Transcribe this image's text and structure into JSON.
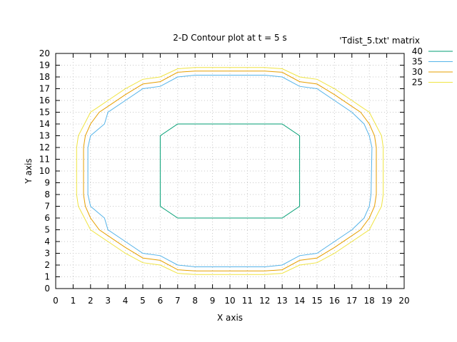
{
  "chart_data": {
    "type": "line",
    "title": "2-D Contour plot at t = 5 s",
    "xlabel": "X axis",
    "ylabel": "Y axis",
    "xlim": [
      0,
      20
    ],
    "ylim": [
      0,
      20
    ],
    "xticks": [
      0,
      1,
      2,
      3,
      4,
      5,
      6,
      7,
      8,
      9,
      10,
      11,
      12,
      13,
      14,
      15,
      16,
      17,
      18,
      19,
      20
    ],
    "yticks": [
      0,
      1,
      2,
      3,
      4,
      5,
      6,
      7,
      8,
      9,
      10,
      11,
      12,
      13,
      14,
      15,
      16,
      17,
      18,
      19,
      20
    ],
    "grid": true,
    "legend_title": "'Tdist_5.txt' matrix",
    "legend_position": "right",
    "series": [
      {
        "name": "40",
        "color": "#009e73",
        "points": [
          [
            7,
            6
          ],
          [
            13,
            6
          ],
          [
            14,
            7
          ],
          [
            14,
            13
          ],
          [
            13,
            14
          ],
          [
            7,
            14
          ],
          [
            6,
            13
          ],
          [
            6,
            7
          ],
          [
            7,
            6
          ]
        ]
      },
      {
        "name": "35",
        "color": "#56b4e9",
        "points": [
          [
            7,
            2
          ],
          [
            8,
            1.85
          ],
          [
            12,
            1.85
          ],
          [
            13,
            2
          ],
          [
            14,
            2.8
          ],
          [
            15,
            3
          ],
          [
            16,
            4
          ],
          [
            17,
            5
          ],
          [
            17.7,
            6
          ],
          [
            18,
            7
          ],
          [
            18.1,
            8
          ],
          [
            18.15,
            12
          ],
          [
            18,
            13
          ],
          [
            17.7,
            14
          ],
          [
            17,
            15
          ],
          [
            16,
            16
          ],
          [
            15,
            17
          ],
          [
            14,
            17.2
          ],
          [
            13,
            18
          ],
          [
            12,
            18.15
          ],
          [
            8,
            18.15
          ],
          [
            7,
            18
          ],
          [
            6,
            17.2
          ],
          [
            5,
            17
          ],
          [
            4,
            16
          ],
          [
            3,
            15
          ],
          [
            2.8,
            14
          ],
          [
            2,
            13
          ],
          [
            1.85,
            12
          ],
          [
            1.85,
            8
          ],
          [
            2,
            7
          ],
          [
            2.8,
            6
          ],
          [
            3,
            5
          ],
          [
            4,
            4
          ],
          [
            5,
            3
          ],
          [
            6,
            2.8
          ],
          [
            7,
            2
          ]
        ]
      },
      {
        "name": "30",
        "color": "#e69f00",
        "points": [
          [
            7,
            1.6
          ],
          [
            8,
            1.5
          ],
          [
            12,
            1.5
          ],
          [
            13,
            1.6
          ],
          [
            14,
            2.4
          ],
          [
            15,
            2.6
          ],
          [
            16,
            3.5
          ],
          [
            17,
            4.5
          ],
          [
            17.5,
            5
          ],
          [
            18,
            6
          ],
          [
            18.3,
            7
          ],
          [
            18.4,
            8
          ],
          [
            18.4,
            12
          ],
          [
            18.3,
            13
          ],
          [
            18,
            14
          ],
          [
            17.5,
            15
          ],
          [
            17,
            15.5
          ],
          [
            16,
            16.5
          ],
          [
            15,
            17.4
          ],
          [
            14,
            17.6
          ],
          [
            13,
            18.4
          ],
          [
            12,
            18.5
          ],
          [
            8,
            18.5
          ],
          [
            7,
            18.4
          ],
          [
            6,
            17.6
          ],
          [
            5,
            17.4
          ],
          [
            4,
            16.5
          ],
          [
            3,
            15.5
          ],
          [
            2.5,
            15
          ],
          [
            2,
            14
          ],
          [
            1.7,
            13
          ],
          [
            1.6,
            12
          ],
          [
            1.6,
            8
          ],
          [
            1.7,
            7
          ],
          [
            2,
            6
          ],
          [
            2.5,
            5
          ],
          [
            3,
            4.5
          ],
          [
            4,
            3.5
          ],
          [
            5,
            2.6
          ],
          [
            6,
            2.4
          ],
          [
            7,
            1.6
          ]
        ]
      },
      {
        "name": "25",
        "color": "#f0e442",
        "points": [
          [
            7,
            1.3
          ],
          [
            8,
            1.2
          ],
          [
            12,
            1.2
          ],
          [
            13,
            1.3
          ],
          [
            14,
            2
          ],
          [
            15,
            2.2
          ],
          [
            16,
            3
          ],
          [
            17,
            4
          ],
          [
            17.5,
            4.5
          ],
          [
            18,
            5
          ],
          [
            18.7,
            7
          ],
          [
            18.8,
            8
          ],
          [
            18.8,
            12
          ],
          [
            18.7,
            13
          ],
          [
            18,
            15
          ],
          [
            17.5,
            15.5
          ],
          [
            17,
            16
          ],
          [
            16,
            17
          ],
          [
            15,
            17.8
          ],
          [
            14,
            18
          ],
          [
            13,
            18.7
          ],
          [
            12,
            18.8
          ],
          [
            8,
            18.8
          ],
          [
            7,
            18.7
          ],
          [
            6,
            18
          ],
          [
            5,
            17.8
          ],
          [
            4,
            17
          ],
          [
            3,
            16
          ],
          [
            2.5,
            15.5
          ],
          [
            2,
            15
          ],
          [
            1.3,
            13
          ],
          [
            1.2,
            12
          ],
          [
            1.2,
            8
          ],
          [
            1.3,
            7
          ],
          [
            2,
            5
          ],
          [
            2.5,
            4.5
          ],
          [
            3,
            4
          ],
          [
            4,
            3
          ],
          [
            5,
            2.2
          ],
          [
            6,
            2
          ],
          [
            7,
            1.3
          ]
        ]
      }
    ]
  }
}
